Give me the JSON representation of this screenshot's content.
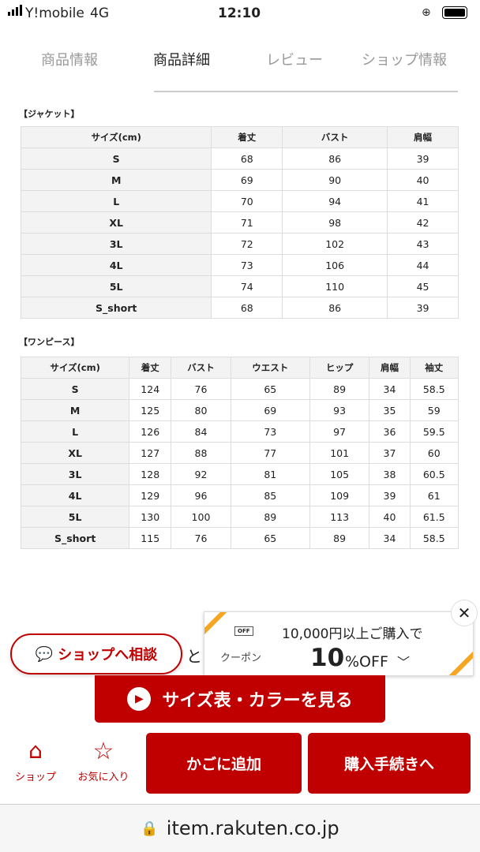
{
  "status": {
    "carrier": "Y!mobile",
    "network": "4G",
    "time": "12:10"
  },
  "tabs": [
    {
      "label": "商品情報"
    },
    {
      "label": "商品詳細",
      "active": true
    },
    {
      "label": "レビュー"
    },
    {
      "label": "ショップ情報"
    }
  ],
  "jacket": {
    "title": "【ジャケット】",
    "headers": [
      "サイズ(cm)",
      "着丈",
      "バスト",
      "肩幅"
    ],
    "rows": [
      [
        "S",
        "68",
        "86",
        "39"
      ],
      [
        "M",
        "69",
        "90",
        "40"
      ],
      [
        "L",
        "70",
        "94",
        "41"
      ],
      [
        "XL",
        "71",
        "98",
        "42"
      ],
      [
        "3L",
        "72",
        "102",
        "43"
      ],
      [
        "4L",
        "73",
        "106",
        "44"
      ],
      [
        "5L",
        "74",
        "110",
        "45"
      ],
      [
        "S_short",
        "68",
        "86",
        "39"
      ]
    ]
  },
  "dress": {
    "title": "【ワンピース】",
    "headers": [
      "サイズ(cm)",
      "着丈",
      "バスト",
      "ウエスト",
      "ヒップ",
      "肩幅",
      "袖丈"
    ],
    "rows": [
      [
        "S",
        "124",
        "76",
        "65",
        "89",
        "34",
        "58.5"
      ],
      [
        "M",
        "125",
        "80",
        "69",
        "93",
        "35",
        "59"
      ],
      [
        "L",
        "126",
        "84",
        "73",
        "97",
        "36",
        "59.5"
      ],
      [
        "XL",
        "127",
        "88",
        "77",
        "101",
        "37",
        "60"
      ],
      [
        "3L",
        "128",
        "92",
        "81",
        "105",
        "38",
        "60.5"
      ],
      [
        "4L",
        "129",
        "96",
        "85",
        "109",
        "39",
        "61"
      ],
      [
        "5L",
        "130",
        "100",
        "89",
        "113",
        "40",
        "61.5"
      ],
      [
        "S_short",
        "115",
        "76",
        "65",
        "89",
        "34",
        "58.5"
      ]
    ]
  },
  "consult": {
    "label": "ショップへ相談",
    "suffix": "と"
  },
  "coupon": {
    "icon_text": "OFF",
    "label": "クーポン",
    "condition": "10,000円以上ご購入で",
    "value": "10",
    "unit": "%OFF"
  },
  "size_button": "サイズ表・カラーを見る",
  "bottom": {
    "shop": "ショップ",
    "favorite": "お気に入り",
    "add_cart": "かごに追加",
    "checkout": "購入手続きへ"
  },
  "url": "item.rakuten.co.jp",
  "colors": {
    "accent": "#c00000",
    "coupon_stripe": "#f5a623"
  }
}
